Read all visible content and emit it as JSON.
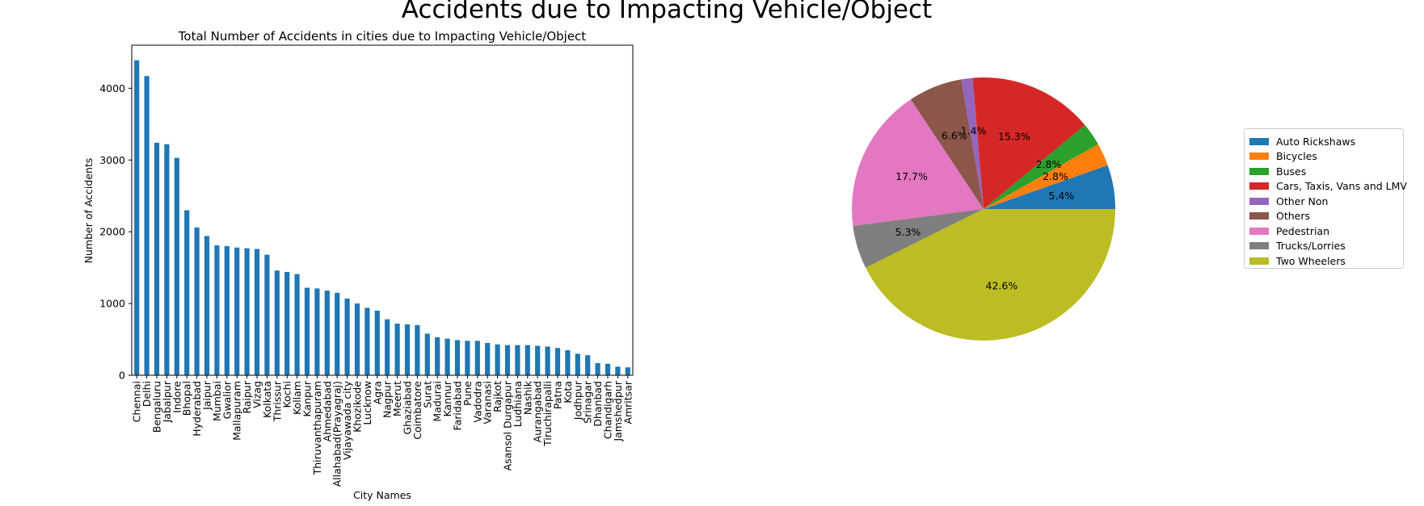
{
  "figure": {
    "suptitle": "Accidents due to Impacting Vehicle/Object"
  },
  "chart_data": [
    {
      "type": "bar",
      "title": "Total Number of Accidents in cities due to Impacting Vehicle/Object",
      "xlabel": "City Names",
      "ylabel": "Number of Accidents",
      "ylim": [
        0,
        4600
      ],
      "yticks": [
        0,
        1000,
        2000,
        3000,
        4000
      ],
      "grid": false,
      "color": "#1f77b4",
      "categories": [
        "Chennai",
        "Delhi",
        "Bengaluru",
        "Jabalpur",
        "Indore",
        "Bhopal",
        "Hyderabad",
        "Jaipur",
        "Mumbai",
        "Gwalior",
        "Mallapuram",
        "Raipur",
        "Vizag",
        "Kolkata",
        "Thrissur",
        "Kochi",
        "Kollam",
        "Kanpur",
        "Thiruvanthapuram",
        "Ahmedabad",
        "Allahabad(Prayagraj)",
        "Vijayawada city",
        "Khozikode",
        "Lucknow",
        "Agra",
        "Nagpur",
        "Meerut",
        "Ghaziabad",
        "Coimbatore",
        "Surat",
        "Madurai",
        "Kannur",
        "Faridabad",
        "Pune",
        "Vadodra",
        "Varanasi",
        "Rajkot",
        "Asansol Durgapur",
        "Ludhiana",
        "Nashik",
        "Aurangabad",
        "Tiruchirapalli",
        "Patna",
        "Kota",
        "Jodhpur",
        "Srinagar",
        "Dhanbad",
        "Chandigarh",
        "Jamshedpur",
        "Amritsar"
      ],
      "values": [
        4390,
        4170,
        3240,
        3220,
        3030,
        2300,
        2060,
        1940,
        1810,
        1800,
        1780,
        1770,
        1760,
        1680,
        1460,
        1440,
        1410,
        1220,
        1210,
        1180,
        1150,
        1070,
        1000,
        940,
        900,
        780,
        720,
        710,
        700,
        580,
        530,
        510,
        490,
        480,
        480,
        450,
        430,
        420,
        420,
        420,
        410,
        400,
        380,
        350,
        300,
        280,
        170,
        160,
        120,
        110
      ]
    },
    {
      "type": "pie",
      "start_angle_deg": 0,
      "direction": "counterclockwise",
      "legend_placement": "right",
      "slices": [
        {
          "label": "Auto Rickshaws",
          "value": 5.4,
          "pct_label": "5.4%",
          "color": "#1f77b4"
        },
        {
          "label": "Bicycles",
          "value": 2.8,
          "pct_label": "2.8%",
          "color": "#ff7f0e"
        },
        {
          "label": "Buses",
          "value": 2.8,
          "pct_label": "2.8%",
          "color": "#2ca02c"
        },
        {
          "label": "Cars, Taxis, Vans and LMV",
          "value": 15.3,
          "pct_label": "15.3%",
          "color": "#d62728"
        },
        {
          "label": "Other Non",
          "value": 1.4,
          "pct_label": "1.4%",
          "color": "#9467bd"
        },
        {
          "label": "Others",
          "value": 6.6,
          "pct_label": "6.6%",
          "color": "#8c564b"
        },
        {
          "label": "Pedestrian",
          "value": 17.7,
          "pct_label": "17.7%",
          "color": "#e377c2"
        },
        {
          "label": "Trucks/Lorries",
          "value": 5.3,
          "pct_label": "5.3%",
          "color": "#7f7f7f"
        },
        {
          "label": "Two Wheelers",
          "value": 42.6,
          "pct_label": "42.6%",
          "color": "#bcbd22"
        }
      ]
    }
  ]
}
